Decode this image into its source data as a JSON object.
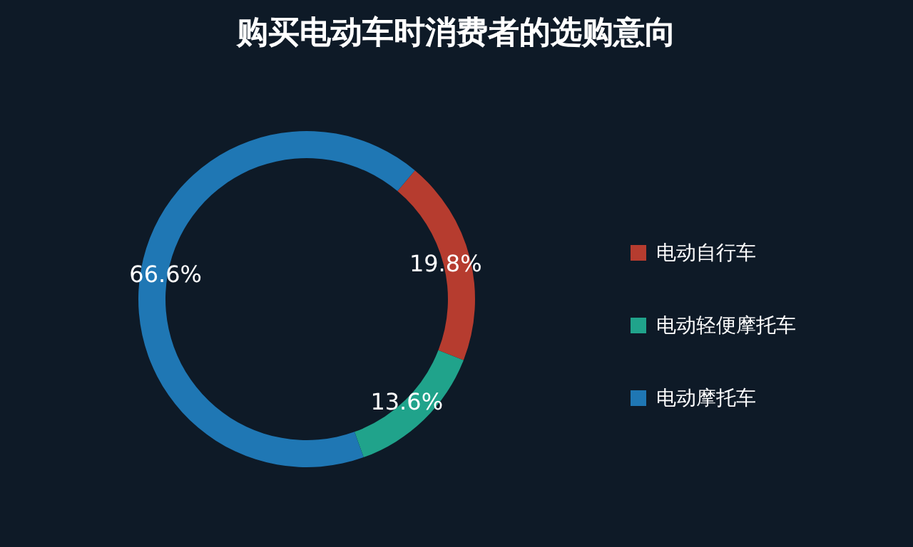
{
  "chart_data": {
    "type": "donut",
    "title": "购买电动车时消费者的选购意向",
    "categories": [
      "电动自行车",
      "电动轻便摩托车",
      "电动摩托车"
    ],
    "values": [
      19.8,
      13.6,
      66.6
    ],
    "colors": [
      "#b63c2f",
      "#20a38b",
      "#1f77b4"
    ],
    "value_labels": [
      "19.8%",
      "13.6%",
      "66.6%"
    ],
    "legend": "right"
  }
}
